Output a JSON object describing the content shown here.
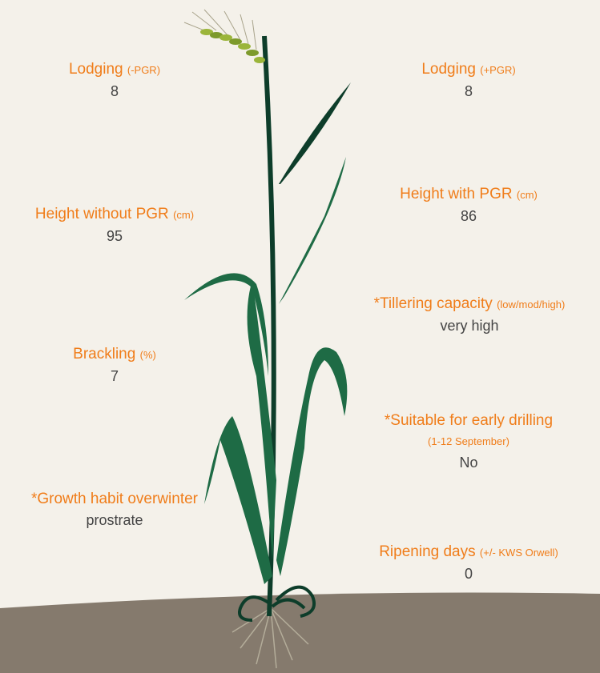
{
  "left": [
    {
      "label": "Lodging",
      "unit": "(-PGR)",
      "value": 8
    },
    {
      "label": "Height without PGR",
      "unit": "(cm)",
      "value": 95
    },
    {
      "label": "Brackling",
      "unit": "(%)",
      "value": 7
    },
    {
      "label": "*Growth habit overwinter",
      "value": "prostrate"
    }
  ],
  "right": [
    {
      "label": "Lodging",
      "unit": "(+PGR)",
      "value": 8
    },
    {
      "label": "Height with PGR",
      "unit": "(cm)",
      "value": 86
    },
    {
      "label": "*Tillering capacity",
      "unit": "(low/mod/high)",
      "value": "very high"
    },
    {
      "label": "*Suitable for early drilling",
      "unit": "(1-12 September)",
      "value": "No"
    },
    {
      "label": "Ripening days",
      "unit": "(+/- KWS Orwell)",
      "value": 0
    }
  ]
}
